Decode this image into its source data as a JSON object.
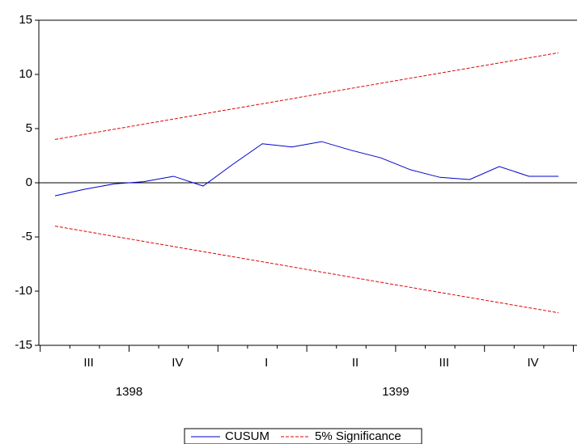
{
  "chart_data": {
    "type": "line",
    "ylim": [
      -15,
      15
    ],
    "yticks": [
      -15,
      -10,
      -5,
      0,
      5,
      10,
      15
    ],
    "quarters": [
      "III",
      "IV",
      "I",
      "II",
      "III",
      "IV"
    ],
    "years": [
      "1398",
      "1399"
    ],
    "series": [
      {
        "name": "CUSUM",
        "color": "#0000cc",
        "dash": false,
        "values": [
          -1.2,
          -0.6,
          -0.1,
          0.1,
          0.6,
          -0.3,
          1.7,
          3.6,
          3.3,
          3.8,
          3.0,
          2.3,
          1.2,
          0.5,
          0.3,
          1.5,
          0.6,
          0.6
        ]
      },
      {
        "name": "5% Significance",
        "color": "#e00000",
        "dash": true,
        "values": [
          4.0,
          4.47,
          4.94,
          5.41,
          5.88,
          6.35,
          6.82,
          7.29,
          7.76,
          8.24,
          8.71,
          9.18,
          9.65,
          10.12,
          10.59,
          11.06,
          11.53,
          12.0
        ],
        "lower": [
          -4.0,
          -4.47,
          -4.94,
          -5.41,
          -5.88,
          -6.35,
          -6.82,
          -7.29,
          -7.76,
          -8.24,
          -8.71,
          -9.18,
          -9.65,
          -10.12,
          -10.59,
          -11.06,
          -11.53,
          -12.0
        ]
      }
    ]
  }
}
